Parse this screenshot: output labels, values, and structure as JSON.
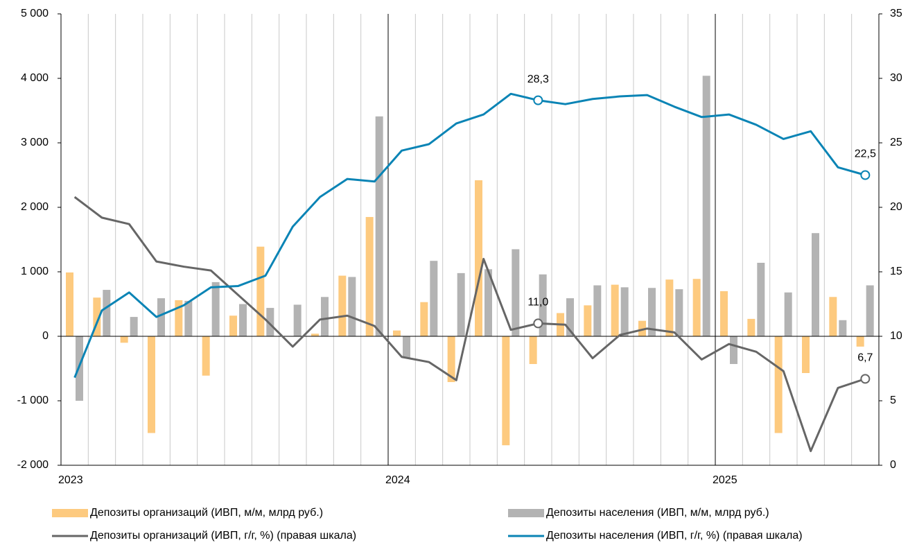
{
  "chart_data": {
    "type": "bar",
    "categories": [
      "2023",
      null,
      null,
      null,
      null,
      null,
      null,
      null,
      null,
      null,
      null,
      null,
      "2024",
      null,
      null,
      null,
      null,
      null,
      null,
      null,
      null,
      null,
      null,
      null,
      "2025",
      null,
      null,
      null,
      null,
      null
    ],
    "series": [
      {
        "name": "Депозиты организаций (ИВП, м/м, млрд руб.)",
        "type": "bar",
        "color": "#fdca7f",
        "values": [
          990,
          600,
          -100,
          -1500,
          560,
          -610,
          320,
          1390,
          0,
          40,
          940,
          1850,
          90,
          530,
          -710,
          2420,
          -1690,
          -430,
          360,
          480,
          800,
          240,
          880,
          890,
          700,
          270,
          -1500,
          -570,
          610,
          -160
        ]
      },
      {
        "name": "Депозиты населения (ИВП, м/м, млрд руб.)",
        "type": "bar",
        "color": "#b3b3b3",
        "values": [
          -1000,
          720,
          300,
          590,
          550,
          840,
          500,
          440,
          490,
          610,
          920,
          3410,
          -340,
          1170,
          980,
          1040,
          1350,
          960,
          590,
          790,
          760,
          750,
          730,
          4040,
          -430,
          1140,
          680,
          1600,
          250,
          790
        ]
      },
      {
        "name": "Депозиты организаций (ИВП, г/г, %) (правая шкала)",
        "type": "line",
        "axis": "y2",
        "color": "#666666",
        "values": [
          20.8,
          19.2,
          18.7,
          15.8,
          15.4,
          15.1,
          13.2,
          11.3,
          9.2,
          11.3,
          11.6,
          10.8,
          8.4,
          8.0,
          6.6,
          16.0,
          10.5,
          11.0,
          10.9,
          8.3,
          10.1,
          10.6,
          10.3,
          8.2,
          9.4,
          8.8,
          7.3,
          1.1,
          6.0,
          6.7
        ],
        "value_labels": [
          null,
          null,
          null,
          null,
          null,
          null,
          null,
          null,
          null,
          null,
          null,
          null,
          null,
          null,
          null,
          null,
          null,
          "11,0",
          null,
          null,
          null,
          null,
          null,
          null,
          null,
          null,
          null,
          null,
          null,
          "6,7"
        ]
      },
      {
        "name": "Депозиты населения (ИВП, г/г, %) (правая шкала)",
        "type": "line",
        "axis": "y2",
        "color": "#0a84b5",
        "values": [
          6.8,
          12.0,
          13.4,
          11.5,
          12.4,
          13.8,
          13.9,
          14.7,
          18.5,
          20.8,
          22.2,
          22.0,
          24.4,
          24.9,
          26.5,
          27.2,
          28.8,
          28.3,
          28.0,
          28.4,
          28.6,
          28.7,
          27.8,
          27.0,
          27.2,
          26.4,
          25.3,
          25.9,
          23.1,
          22.5
        ],
        "value_labels": [
          null,
          null,
          null,
          null,
          null,
          null,
          null,
          null,
          null,
          null,
          null,
          null,
          null,
          null,
          null,
          null,
          null,
          "28,3",
          null,
          null,
          null,
          null,
          null,
          null,
          null,
          null,
          null,
          null,
          null,
          "22,5"
        ]
      }
    ],
    "ylim": [
      -2000,
      5000
    ],
    "yticks": [
      {
        "value": -2000,
        "label": "-2 000"
      },
      {
        "value": -1000,
        "label": "-1 000"
      },
      0,
      {
        "value": 1000,
        "label": "1 000"
      },
      {
        "value": 2000,
        "label": "2 000"
      },
      {
        "value": 3000,
        "label": "3 000"
      },
      {
        "value": 4000,
        "label": "4 000"
      },
      {
        "value": 5000,
        "label": "5 000"
      }
    ],
    "y2lim": [
      0,
      35
    ],
    "y2ticks": [
      0,
      5,
      10,
      15,
      20,
      25,
      30,
      35
    ],
    "grid": true
  }
}
